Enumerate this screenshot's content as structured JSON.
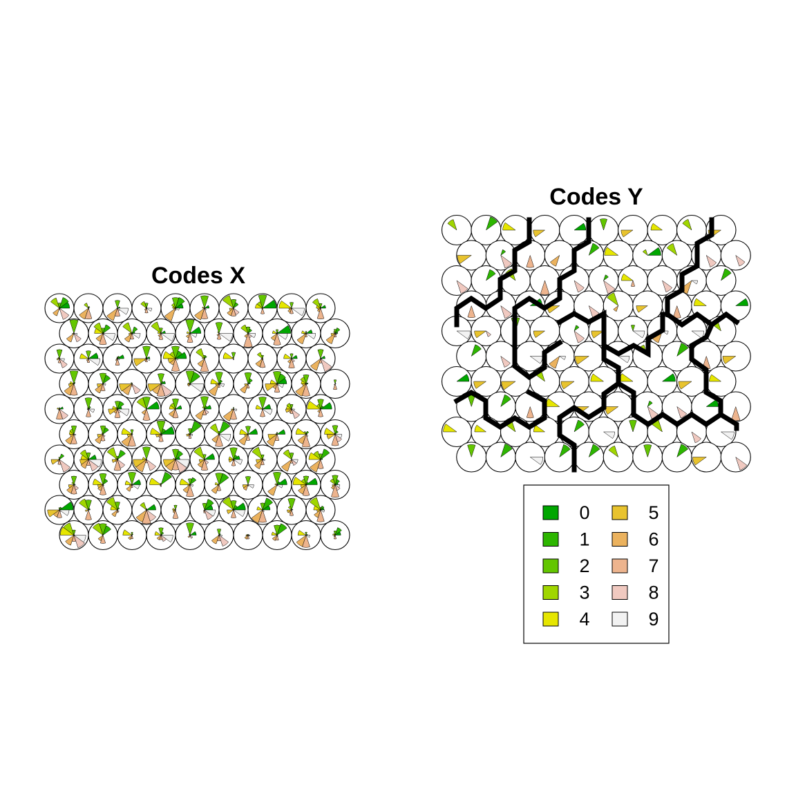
{
  "chart_data": [
    {
      "type": "other",
      "title": "Codes X",
      "grid": {
        "rows": 10,
        "cols": 10,
        "topology": "hexagonal"
      }
    },
    {
      "type": "other",
      "title": "Codes Y",
      "grid": {
        "rows": 10,
        "cols": 10,
        "topology": "hexagonal"
      },
      "has_cluster_boundaries": true
    }
  ],
  "legend": {
    "entries": [
      {
        "label": "0",
        "color": "#00A600"
      },
      {
        "label": "1",
        "color": "#2DB600"
      },
      {
        "label": "2",
        "color": "#63C600"
      },
      {
        "label": "3",
        "color": "#A0D600"
      },
      {
        "label": "4",
        "color": "#E6E600"
      },
      {
        "label": "5",
        "color": "#E8C32E"
      },
      {
        "label": "6",
        "color": "#EBB25E"
      },
      {
        "label": "7",
        "color": "#EDB48E"
      },
      {
        "label": "8",
        "color": "#F0C9C0"
      },
      {
        "label": "9",
        "color": "#F2F2F2"
      }
    ]
  }
}
